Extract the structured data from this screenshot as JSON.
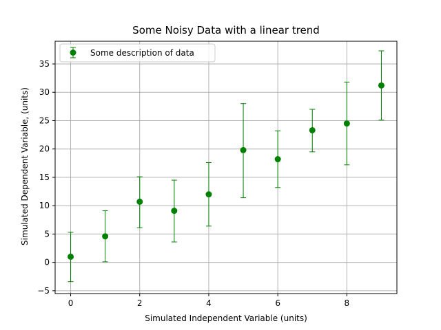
{
  "chart_data": {
    "type": "scatter",
    "title": "Some Noisy Data with a linear trend",
    "xlabel": "Simulated Independent Variable (units)",
    "ylabel": "Simulated Dependent Variable, (units)",
    "xlim": [
      -0.45,
      9.45
    ],
    "ylim": [
      -5.5,
      39.0
    ],
    "xticks": [
      0,
      2,
      4,
      6,
      8
    ],
    "yticks": [
      -5,
      0,
      5,
      10,
      15,
      20,
      25,
      30,
      35
    ],
    "grid": true,
    "legend_position": "upper-left",
    "series": [
      {
        "name": "Some description of data",
        "color": "#008000",
        "marker": "circle",
        "error_bars": true,
        "points": [
          {
            "x": 0,
            "y": 1.0,
            "ylow": -3.4,
            "yhigh": 5.3
          },
          {
            "x": 1,
            "y": 4.6,
            "ylow": 0.1,
            "yhigh": 9.1
          },
          {
            "x": 2,
            "y": 10.7,
            "ylow": 6.1,
            "yhigh": 15.1
          },
          {
            "x": 3,
            "y": 9.1,
            "ylow": 3.6,
            "yhigh": 14.5
          },
          {
            "x": 4,
            "y": 12.0,
            "ylow": 6.4,
            "yhigh": 17.6
          },
          {
            "x": 5,
            "y": 19.8,
            "ylow": 11.4,
            "yhigh": 28.0
          },
          {
            "x": 6,
            "y": 18.2,
            "ylow": 13.2,
            "yhigh": 23.2
          },
          {
            "x": 7,
            "y": 23.3,
            "ylow": 19.5,
            "yhigh": 27.0
          },
          {
            "x": 8,
            "y": 24.5,
            "ylow": 17.2,
            "yhigh": 31.8
          },
          {
            "x": 9,
            "y": 31.2,
            "ylow": 25.1,
            "yhigh": 37.3
          }
        ]
      }
    ]
  }
}
